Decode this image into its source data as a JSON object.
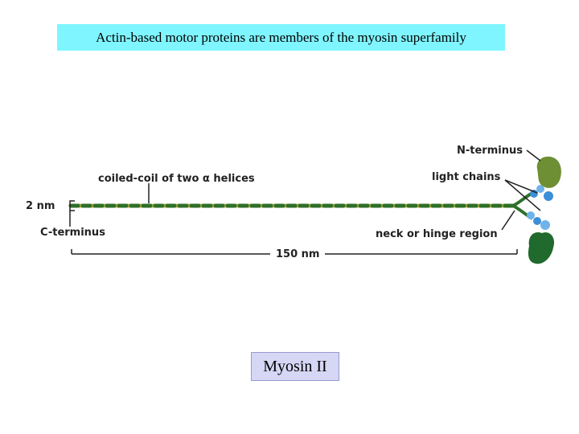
{
  "slide": {
    "title": "Actin-based motor proteins are members of the myosin superfamily",
    "caption": "Myosin II"
  },
  "diagram": {
    "labels": {
      "n_terminus": "N-terminus",
      "coiled_coil": "coiled-coil of two α helices",
      "light_chains": "light chains",
      "width": "2 nm",
      "c_terminus": "C-terminus",
      "neck": "neck or hinge region",
      "length": "150 nm"
    },
    "colors": {
      "title_bg": "#7ff5ff",
      "caption_bg": "#d6d6f5",
      "helix_dark": "#2f6f2a",
      "helix_light": "#b7b24a",
      "head_upper": "#6e8f33",
      "head_lower": "#1f6a2c",
      "light_chain": "#3c8fd6"
    }
  }
}
